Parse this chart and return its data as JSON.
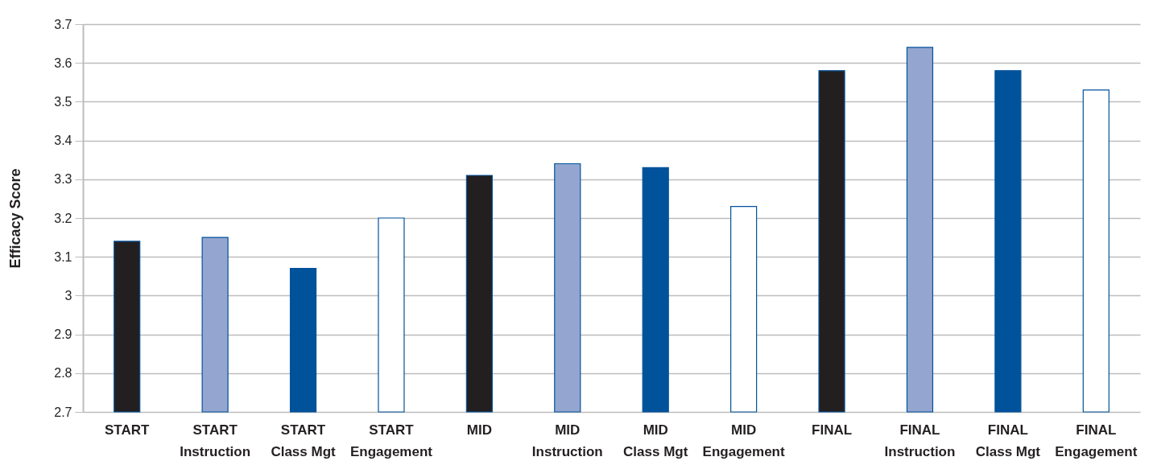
{
  "chart_data": {
    "type": "bar",
    "ylabel": "Efficacy Score",
    "categories": [
      "START",
      "START\nInstruction",
      "START\nClass Mgt",
      "START\nEngagement",
      "MID",
      "MID\nInstruction",
      "MID\nClass Mgt",
      "MID\nEngagement",
      "FINAL",
      "FINAL\nInstruction",
      "FINAL\nClass Mgt",
      "FINAL\nEngagement"
    ],
    "values": [
      3.14,
      3.15,
      3.07,
      3.2,
      3.31,
      3.34,
      3.33,
      3.23,
      3.58,
      3.64,
      3.58,
      3.53
    ],
    "colors": [
      "#231f20",
      "#94a6d0",
      "#00529b",
      "#ffffff",
      "#231f20",
      "#94a6d0",
      "#00529b",
      "#ffffff",
      "#231f20",
      "#94a6d0",
      "#00529b",
      "#ffffff"
    ],
    "ylim": [
      2.7,
      3.7
    ],
    "yticks": [
      2.7,
      2.8,
      2.9,
      3,
      3.1,
      3.2,
      3.3,
      3.4,
      3.5,
      3.6,
      3.7
    ],
    "grid": "y"
  }
}
